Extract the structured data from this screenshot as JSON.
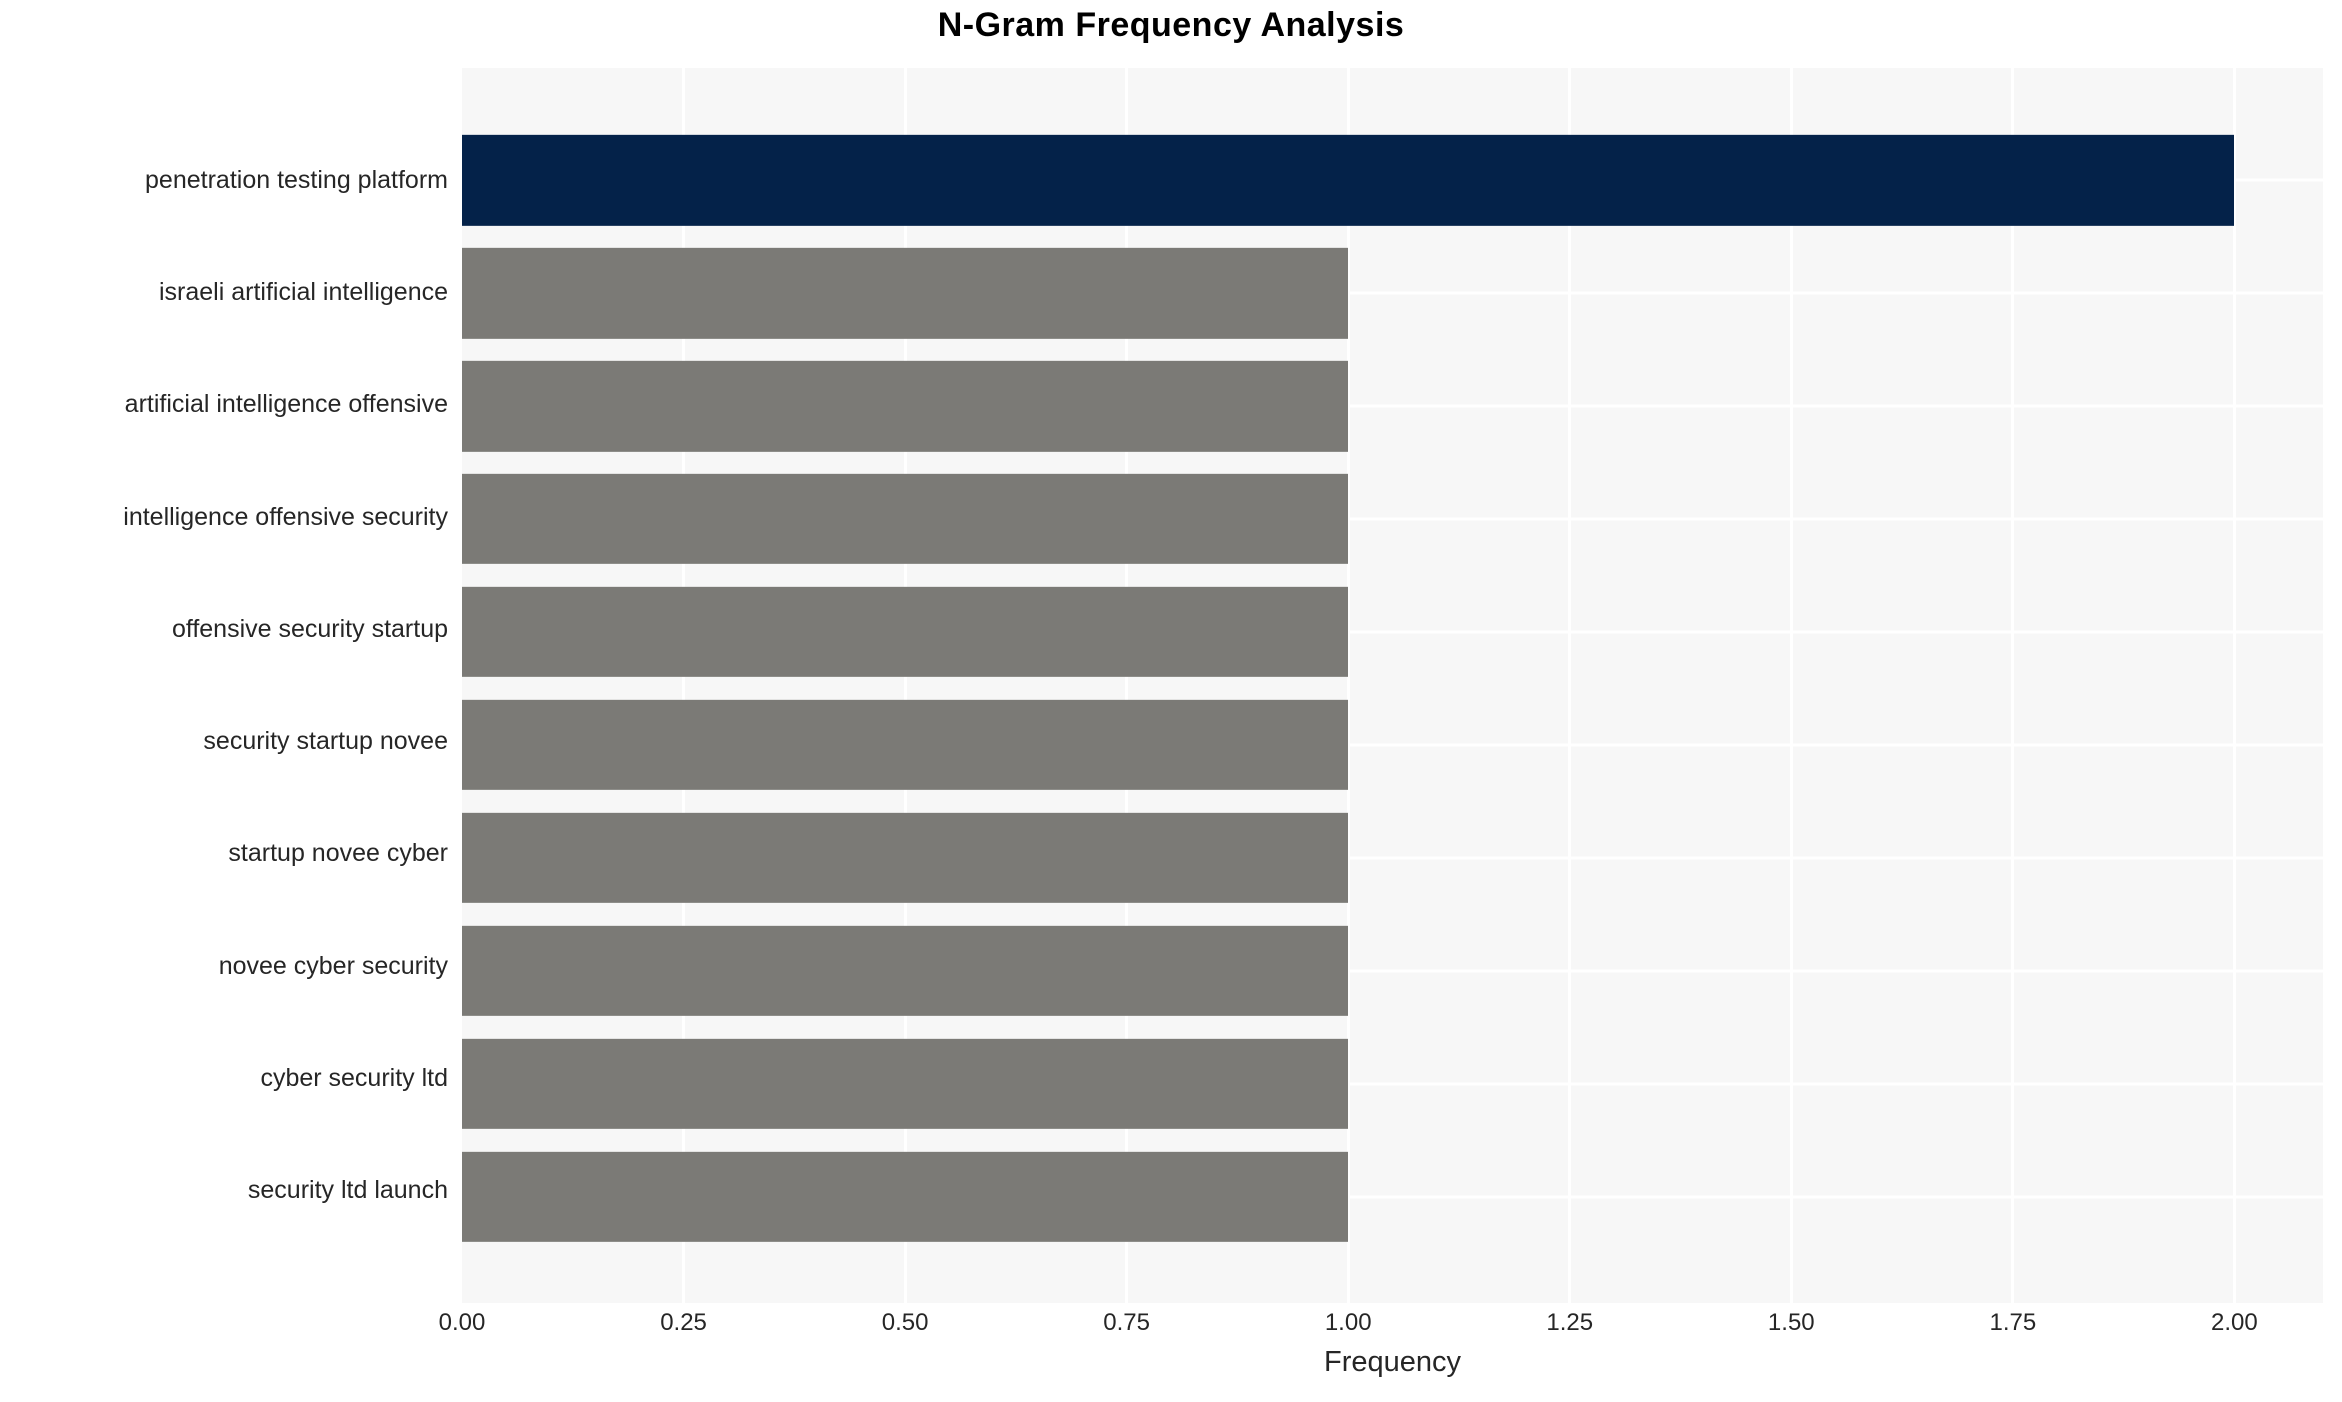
{
  "chart_data": {
    "type": "bar",
    "orientation": "horizontal",
    "title": "N-Gram Frequency Analysis",
    "xlabel": "Frequency",
    "ylabel": "",
    "categories": [
      "penetration testing platform",
      "israeli artificial intelligence",
      "artificial intelligence offensive",
      "intelligence offensive security",
      "offensive security startup",
      "security startup novee",
      "startup novee cyber",
      "novee cyber security",
      "cyber security ltd",
      "security ltd launch"
    ],
    "values": [
      2,
      1,
      1,
      1,
      1,
      1,
      1,
      1,
      1,
      1
    ],
    "highlight_index": 0,
    "xlim": [
      0,
      2.1
    ],
    "xticks": {
      "values": [
        0,
        0.25,
        0.5,
        0.75,
        1,
        1.25,
        1.5,
        1.75,
        2
      ],
      "labels": [
        "0.00",
        "0.25",
        "0.50",
        "0.75",
        "1.00",
        "1.25",
        "1.50",
        "1.75",
        "2.00"
      ]
    },
    "grid": "white vertical and horizontal gridlines on light plot background",
    "legend": false,
    "colors": {
      "bar_highlight": "#042249",
      "bar_default": "#7B7A76",
      "plot_bg": "#F7F7F7",
      "grid": "#FFFFFF",
      "text": "#262626",
      "title": "#000000"
    }
  }
}
